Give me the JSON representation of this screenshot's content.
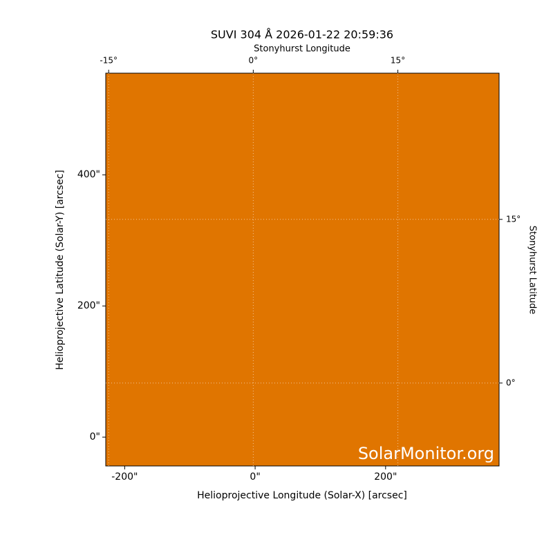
{
  "chart_data": {
    "type": "image",
    "title": "SUVI 304 Å 2026-01-22 20:59:36",
    "xlabel": "Helioprojective Longitude (Solar-X) [arcsec]",
    "ylabel": "Helioprojective Latitude (Solar-Y) [arcsec]",
    "xlim": [
      -229,
      374
    ],
    "ylim": [
      -44,
      555
    ],
    "xticks": [
      {
        "value": -200,
        "label": "-200\""
      },
      {
        "value": 0,
        "label": "0\""
      },
      {
        "value": 200,
        "label": "200\""
      }
    ],
    "yticks": [
      {
        "value": 0,
        "label": "0\""
      },
      {
        "value": 200,
        "label": "200\""
      },
      {
        "value": 400,
        "label": "400\""
      }
    ],
    "top_label": "Stonyhurst Longitude",
    "top_lim": [
      -15.3,
      25.5
    ],
    "top_ticks": [
      {
        "value": -15,
        "label": "-15°"
      },
      {
        "value": 0,
        "label": "0°"
      },
      {
        "value": 15,
        "label": "15°"
      }
    ],
    "right_label": "Stonyhurst Latitude",
    "right_lim": [
      -7.6,
      28.4
    ],
    "right_ticks": [
      {
        "value": 0,
        "label": "0°"
      },
      {
        "value": 15,
        "label": "15°"
      }
    ],
    "watermark": "SolarMonitor.org",
    "grid": true
  }
}
